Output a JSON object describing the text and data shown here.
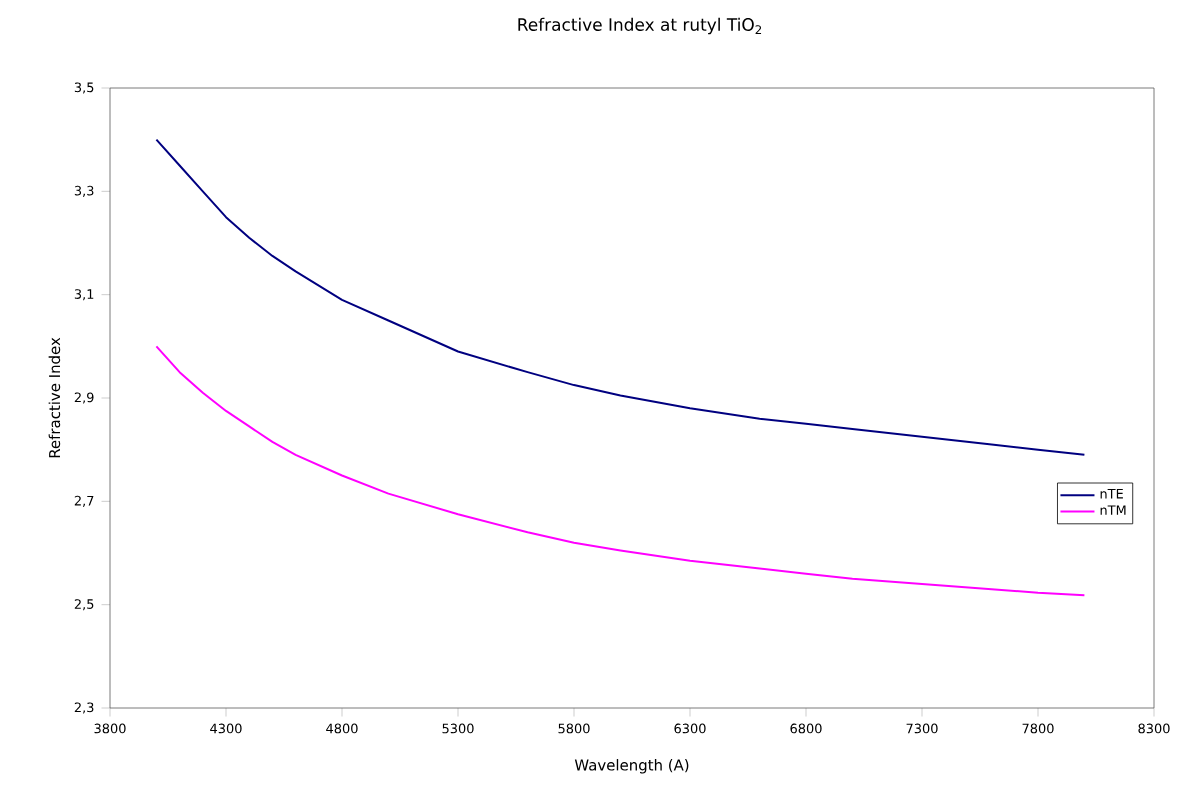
{
  "chart_data": {
    "type": "line",
    "title": "Refractive Index at rutyl TiO$_{2}$",
    "xlabel": "Wavelength (A)",
    "ylabel": "Refractive Index",
    "x": [
      4000,
      4100,
      4200,
      4300,
      4400,
      4500,
      4600,
      4800,
      5000,
      5300,
      5600,
      5800,
      6000,
      6300,
      6600,
      6800,
      7000,
      7300,
      7600,
      7800,
      8000
    ],
    "series": [
      {
        "name": "nTE",
        "color": "#000080",
        "values": [
          3.4,
          3.35,
          3.3,
          3.25,
          3.21,
          3.175,
          3.145,
          3.09,
          3.05,
          2.99,
          2.95,
          2.925,
          2.905,
          2.88,
          2.86,
          2.85,
          2.84,
          2.825,
          2.81,
          2.8,
          2.79
        ]
      },
      {
        "name": "nTM",
        "color": "#ff00ff",
        "values": [
          3.0,
          2.95,
          2.91,
          2.875,
          2.845,
          2.815,
          2.79,
          2.75,
          2.715,
          2.675,
          2.64,
          2.62,
          2.605,
          2.585,
          2.57,
          2.56,
          2.55,
          2.54,
          2.53,
          2.523,
          2.518
        ]
      }
    ],
    "xlim": [
      3800,
      8300
    ],
    "xticks": [
      3800,
      4300,
      4800,
      5300,
      5800,
      6300,
      6800,
      7300,
      7800,
      {
        "value": 8300,
        "label": "8300"
      }
    ],
    "ylim": [
      2.3,
      3.5
    ],
    "yticks": [
      {
        "value": 2.3,
        "label": "2,3"
      },
      {
        "value": 2.5,
        "label": "2,5"
      },
      {
        "value": 2.7,
        "label": "2,7"
      },
      {
        "value": 2.9,
        "label": "2,9"
      },
      {
        "value": 3.1,
        "label": "3,1"
      },
      {
        "value": 3.3,
        "label": "3,3"
      },
      {
        "value": 3.5,
        "label": "3,5"
      }
    ],
    "grid": false,
    "legend": "right",
    "marker": "none",
    "line_style": "solid"
  }
}
